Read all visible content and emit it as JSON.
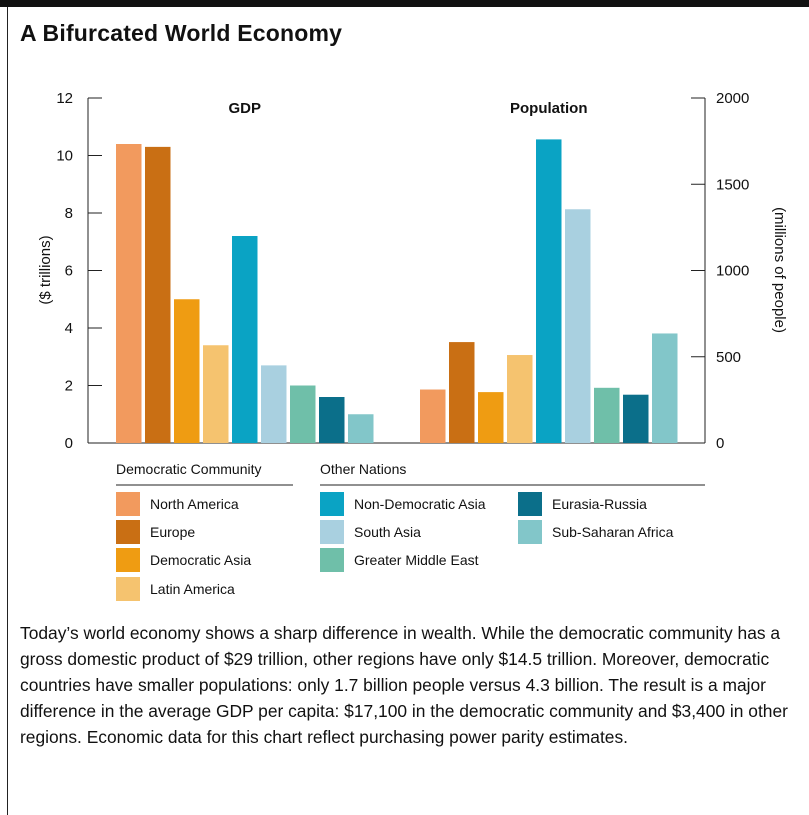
{
  "title": "A Bifurcated World Economy",
  "caption": "Today’s world economy shows a sharp difference in wealth. While the democratic community has a gross domestic product of $29 trillion, other regions have only $14.5 trillion. Moreover, democratic countries have smaller populations: only 1.7 billion people versus 4.3 billion. The result is a major difference in the average GDP per capita: $17,100 in the democratic community and $3,400 in other regions. Economic data for this chart reflect purchasing power parity estimates.",
  "colors": {
    "North America": "#f29a5e",
    "Europe": "#c96f14",
    "Democratic Asia": "#ef9c12",
    "Latin America": "#f5c36f",
    "Non-Democratic Asia": "#0aa3c4",
    "South Asia": "#a9d0e0",
    "Greater Middle East": "#6fbfa9",
    "Eurasia-Russia": "#0b6f8a",
    "Sub-Saharan Africa": "#82c6c9"
  },
  "chart_data": {
    "type": "bar",
    "categories": [
      "North America",
      "Europe",
      "Democratic Asia",
      "Latin America",
      "Non-Democratic Asia",
      "South Asia",
      "Greater Middle East",
      "Eurasia-Russia",
      "Sub-Saharan Africa"
    ],
    "panels": [
      {
        "title": "GDP",
        "axis": "left",
        "ylabel": "($ trillions)",
        "ylim": [
          0,
          12
        ],
        "yticks": [
          0,
          2,
          4,
          6,
          8,
          10,
          12
        ],
        "values": [
          10.4,
          10.3,
          5.0,
          3.4,
          7.2,
          2.7,
          2.0,
          1.6,
          1.0
        ]
      },
      {
        "title": "Population",
        "axis": "right",
        "ylabel": "(millions of people)",
        "ylim": [
          0,
          2000
        ],
        "yticks": [
          0,
          500,
          1000,
          1500,
          2000
        ],
        "values": [
          310,
          585,
          295,
          510,
          1760,
          1355,
          320,
          280,
          635
        ]
      }
    ],
    "legend": {
      "groups": [
        {
          "name": "Democratic Community",
          "items": [
            "North America",
            "Europe",
            "Democratic Asia",
            "Latin America"
          ]
        },
        {
          "name": "Other Nations",
          "items": [
            "Non-Democratic Asia",
            "South Asia",
            "Greater Middle East",
            "Eurasia-Russia",
            "Sub-Saharan Africa"
          ]
        }
      ],
      "placement": "bottom"
    },
    "grid": false
  }
}
